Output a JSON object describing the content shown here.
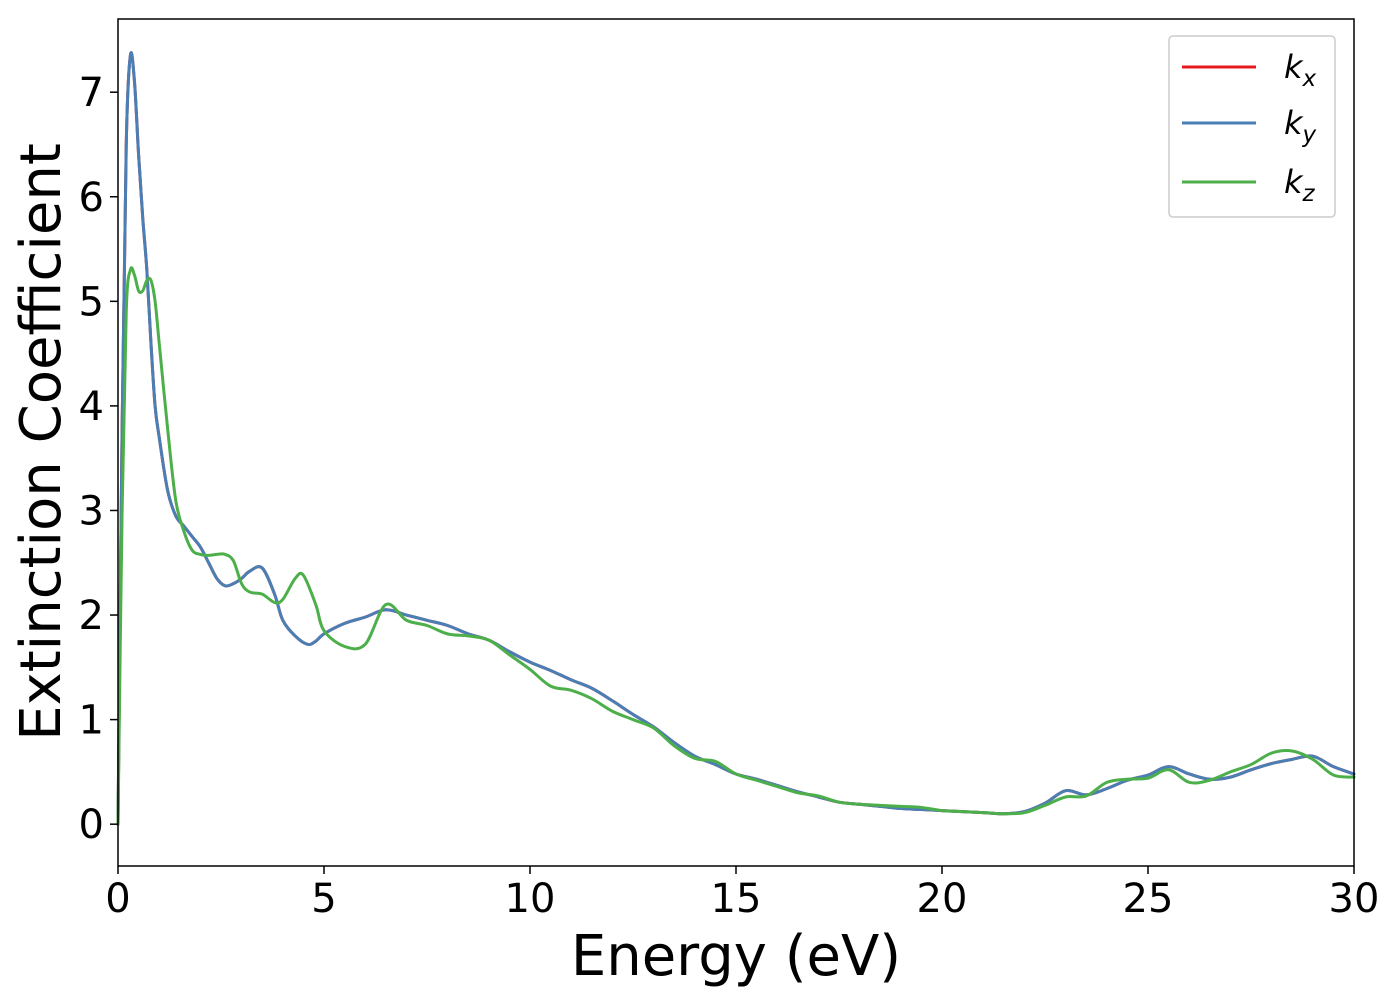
{
  "chart_data": {
    "type": "line",
    "xlabel": "Energy (eV)",
    "ylabel": "Extinction Coefficient",
    "xlim": [
      0,
      30
    ],
    "ylim": [
      -0.4,
      7.7
    ],
    "xticks": [
      0,
      5,
      10,
      15,
      20,
      25,
      30
    ],
    "yticks": [
      0,
      1,
      2,
      3,
      4,
      5,
      6,
      7
    ],
    "grid": false,
    "legend_position": "top-right",
    "series": [
      {
        "name": "k_x",
        "legend_main": "k",
        "legend_sub": "x",
        "color": "#e41a1c",
        "x": [
          0,
          0.1,
          0.2,
          0.3,
          0.4,
          0.5,
          0.6,
          0.7,
          0.8,
          0.9,
          1.0,
          1.2,
          1.4,
          1.6,
          1.8,
          2.0,
          2.2,
          2.4,
          2.6,
          2.8,
          3.0,
          3.2,
          3.5,
          3.8,
          4.0,
          4.3,
          4.6,
          4.8,
          5.0,
          5.5,
          6.0,
          6.5,
          7.0,
          7.5,
          8.0,
          8.5,
          9.0,
          9.5,
          10.0,
          10.5,
          11.0,
          11.5,
          12.0,
          12.5,
          13.0,
          13.5,
          14.0,
          14.5,
          15.0,
          15.5,
          16.0,
          16.5,
          17.0,
          17.5,
          18.0,
          18.5,
          19.0,
          19.5,
          20.0,
          20.5,
          21.0,
          21.5,
          22.0,
          22.5,
          23.0,
          23.5,
          24.0,
          24.5,
          25.0,
          25.5,
          26.0,
          26.5,
          27.0,
          27.5,
          28.0,
          28.5,
          29.0,
          29.5,
          30.0
        ],
        "values": [
          0.0,
          3.8,
          6.5,
          7.35,
          7.1,
          6.4,
          5.8,
          5.3,
          4.6,
          4.0,
          3.7,
          3.2,
          2.95,
          2.85,
          2.75,
          2.65,
          2.5,
          2.35,
          2.28,
          2.3,
          2.35,
          2.42,
          2.45,
          2.2,
          1.95,
          1.8,
          1.72,
          1.75,
          1.82,
          1.92,
          1.98,
          2.05,
          2.0,
          1.95,
          1.9,
          1.82,
          1.76,
          1.65,
          1.55,
          1.47,
          1.38,
          1.3,
          1.18,
          1.05,
          0.93,
          0.78,
          0.65,
          0.57,
          0.48,
          0.43,
          0.37,
          0.31,
          0.26,
          0.21,
          0.19,
          0.17,
          0.15,
          0.14,
          0.13,
          0.12,
          0.11,
          0.1,
          0.12,
          0.2,
          0.32,
          0.28,
          0.34,
          0.42,
          0.47,
          0.55,
          0.48,
          0.43,
          0.45,
          0.52,
          0.58,
          0.62,
          0.65,
          0.55,
          0.48
        ]
      },
      {
        "name": "k_y",
        "legend_main": "k",
        "legend_sub": "y",
        "color": "#4a7fb5",
        "x": [
          0,
          0.1,
          0.2,
          0.3,
          0.4,
          0.5,
          0.6,
          0.7,
          0.8,
          0.9,
          1.0,
          1.2,
          1.4,
          1.6,
          1.8,
          2.0,
          2.2,
          2.4,
          2.6,
          2.8,
          3.0,
          3.2,
          3.5,
          3.8,
          4.0,
          4.3,
          4.6,
          4.8,
          5.0,
          5.5,
          6.0,
          6.5,
          7.0,
          7.5,
          8.0,
          8.5,
          9.0,
          9.5,
          10.0,
          10.5,
          11.0,
          11.5,
          12.0,
          12.5,
          13.0,
          13.5,
          14.0,
          14.5,
          15.0,
          15.5,
          16.0,
          16.5,
          17.0,
          17.5,
          18.0,
          18.5,
          19.0,
          19.5,
          20.0,
          20.5,
          21.0,
          21.5,
          22.0,
          22.5,
          23.0,
          23.5,
          24.0,
          24.5,
          25.0,
          25.5,
          26.0,
          26.5,
          27.0,
          27.5,
          28.0,
          28.5,
          29.0,
          29.5,
          30.0
        ],
        "values": [
          0.0,
          3.8,
          6.5,
          7.35,
          7.1,
          6.4,
          5.8,
          5.3,
          4.6,
          4.0,
          3.7,
          3.2,
          2.95,
          2.85,
          2.75,
          2.65,
          2.5,
          2.35,
          2.28,
          2.3,
          2.35,
          2.42,
          2.45,
          2.2,
          1.95,
          1.8,
          1.72,
          1.75,
          1.82,
          1.92,
          1.98,
          2.05,
          2.0,
          1.95,
          1.9,
          1.82,
          1.76,
          1.65,
          1.55,
          1.47,
          1.38,
          1.3,
          1.18,
          1.05,
          0.93,
          0.78,
          0.65,
          0.57,
          0.48,
          0.43,
          0.37,
          0.31,
          0.26,
          0.21,
          0.19,
          0.17,
          0.15,
          0.14,
          0.13,
          0.12,
          0.11,
          0.1,
          0.12,
          0.2,
          0.32,
          0.28,
          0.34,
          0.42,
          0.47,
          0.55,
          0.48,
          0.43,
          0.45,
          0.52,
          0.58,
          0.62,
          0.65,
          0.55,
          0.48
        ]
      },
      {
        "name": "k_z",
        "legend_main": "k",
        "legend_sub": "z",
        "color": "#4daf4a",
        "x": [
          0,
          0.1,
          0.2,
          0.3,
          0.4,
          0.5,
          0.6,
          0.7,
          0.8,
          0.9,
          1.0,
          1.2,
          1.4,
          1.6,
          1.8,
          2.0,
          2.2,
          2.4,
          2.6,
          2.8,
          3.0,
          3.2,
          3.5,
          3.8,
          4.0,
          4.3,
          4.5,
          4.8,
          5.0,
          5.5,
          6.0,
          6.5,
          7.0,
          7.5,
          8.0,
          8.5,
          9.0,
          9.5,
          10.0,
          10.5,
          11.0,
          11.5,
          12.0,
          12.5,
          13.0,
          13.5,
          14.0,
          14.5,
          15.0,
          15.5,
          16.0,
          16.5,
          17.0,
          17.5,
          18.0,
          18.5,
          19.0,
          19.5,
          20.0,
          20.5,
          21.0,
          21.5,
          22.0,
          22.5,
          23.0,
          23.5,
          24.0,
          24.5,
          25.0,
          25.5,
          26.0,
          26.5,
          27.0,
          27.5,
          28.0,
          28.5,
          29.0,
          29.5,
          30.0
        ],
        "values": [
          0.0,
          3.0,
          4.9,
          5.3,
          5.25,
          5.1,
          5.1,
          5.2,
          5.2,
          5.0,
          4.6,
          3.8,
          3.1,
          2.8,
          2.62,
          2.58,
          2.57,
          2.58,
          2.58,
          2.52,
          2.3,
          2.22,
          2.2,
          2.12,
          2.15,
          2.35,
          2.38,
          2.1,
          1.85,
          1.7,
          1.72,
          2.1,
          1.95,
          1.9,
          1.82,
          1.8,
          1.76,
          1.62,
          1.48,
          1.32,
          1.28,
          1.2,
          1.08,
          1.0,
          0.92,
          0.75,
          0.63,
          0.6,
          0.48,
          0.42,
          0.36,
          0.3,
          0.27,
          0.21,
          0.19,
          0.18,
          0.17,
          0.16,
          0.13,
          0.12,
          0.11,
          0.1,
          0.11,
          0.18,
          0.26,
          0.27,
          0.4,
          0.43,
          0.44,
          0.52,
          0.4,
          0.42,
          0.5,
          0.57,
          0.68,
          0.7,
          0.62,
          0.47,
          0.45
        ]
      }
    ]
  }
}
